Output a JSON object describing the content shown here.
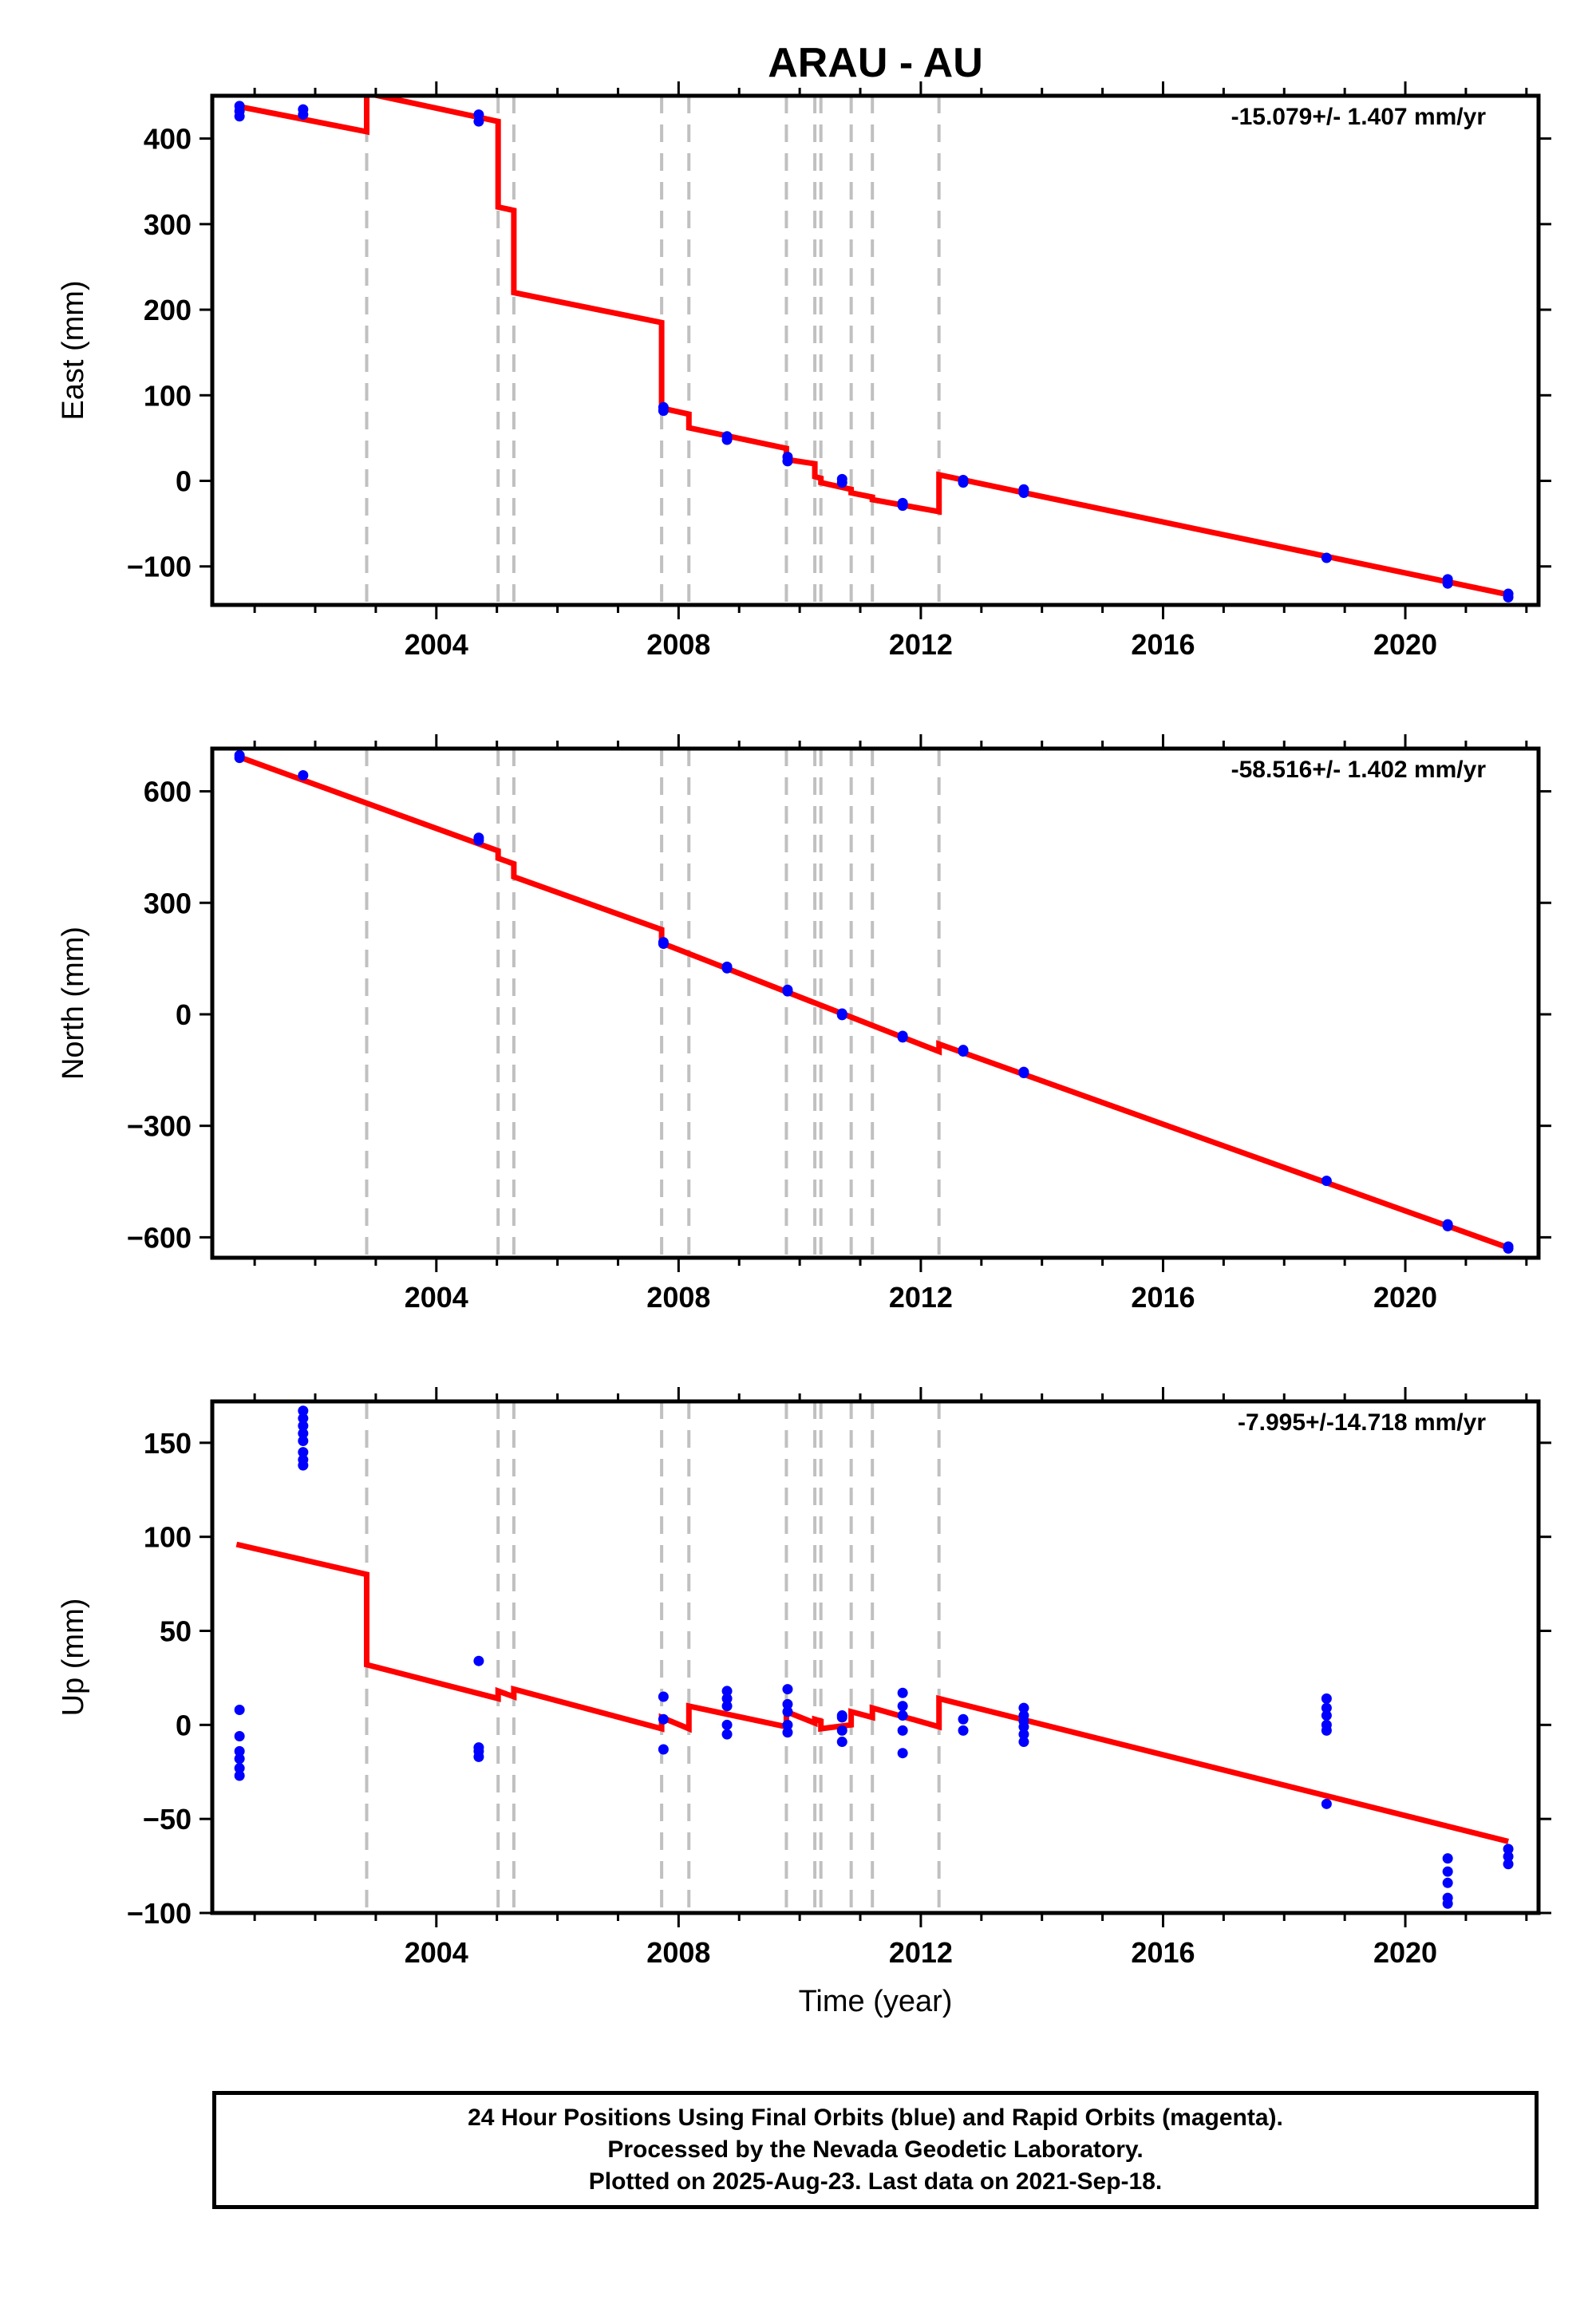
{
  "colors": {
    "model": "#ff0000",
    "final_orbits": "#0000ff",
    "offset_lines": "#c0c0c0",
    "frame": "#000000"
  },
  "footer": {
    "line1": "24 Hour Positions Using Final Orbits (blue) and Rapid Orbits (magenta).",
    "line2": "Processed by the Nevada Geodetic Laboratory.",
    "line3": "Plotted on 2025-Aug-23. Last data on 2021-Sep-18."
  },
  "chart_data": {
    "type": "scatter",
    "title": "ARAU - AU",
    "xlabel": "Time (year)",
    "xlim": [
      2000.3,
      2022.2
    ],
    "x_ticks": [
      2004,
      2008,
      2012,
      2016,
      2020
    ],
    "offset_lines": [
      2002.85,
      2005.02,
      2005.28,
      2007.72,
      2008.17,
      2009.78,
      2010.25,
      2010.35,
      2010.85,
      2011.2,
      2012.3
    ],
    "panels": [
      {
        "ylabel": "East (mm)",
        "rate": "-15.079+/- 1.407 mm/yr",
        "ylim": [
          -145,
          450
        ],
        "y_ticks": [
          -100,
          0,
          100,
          200,
          300,
          400
        ],
        "model": [
          [
            2000.7,
            438
          ],
          [
            2002.85,
            408
          ],
          [
            2002.85,
            453
          ],
          [
            2005.02,
            420
          ],
          [
            2005.02,
            320
          ],
          [
            2005.28,
            316
          ],
          [
            2005.28,
            220
          ],
          [
            2007.72,
            185
          ],
          [
            2007.72,
            85
          ],
          [
            2008.17,
            78
          ],
          [
            2008.17,
            62
          ],
          [
            2009.78,
            38
          ],
          [
            2009.78,
            25
          ],
          [
            2010.25,
            20
          ],
          [
            2010.25,
            5
          ],
          [
            2010.35,
            3
          ],
          [
            2010.35,
            -2
          ],
          [
            2010.85,
            -10
          ],
          [
            2010.85,
            -14
          ],
          [
            2011.2,
            -19
          ],
          [
            2011.2,
            -22
          ],
          [
            2012.3,
            -36
          ],
          [
            2012.3,
            7
          ],
          [
            2021.7,
            -133
          ]
        ],
        "points": [
          [
            2000.75,
            438
          ],
          [
            2000.75,
            432
          ],
          [
            2000.75,
            426
          ],
          [
            2001.8,
            434
          ],
          [
            2001.8,
            428
          ],
          [
            2004.7,
            428
          ],
          [
            2004.7,
            420
          ],
          [
            2007.75,
            86
          ],
          [
            2007.75,
            82
          ],
          [
            2008.8,
            52
          ],
          [
            2008.8,
            48
          ],
          [
            2009.8,
            28
          ],
          [
            2009.8,
            23
          ],
          [
            2010.7,
            2
          ],
          [
            2010.7,
            -2
          ],
          [
            2011.7,
            -26
          ],
          [
            2011.7,
            -29
          ],
          [
            2012.7,
            1
          ],
          [
            2012.7,
            -2
          ],
          [
            2013.7,
            -10
          ],
          [
            2013.7,
            -14
          ],
          [
            2018.7,
            -90
          ],
          [
            2020.7,
            -115
          ],
          [
            2020.7,
            -120
          ],
          [
            2021.7,
            -132
          ],
          [
            2021.7,
            -136
          ]
        ]
      },
      {
        "ylabel": "North (mm)",
        "rate": "-58.516+/- 1.402 mm/yr",
        "ylim": [
          -655,
          715
        ],
        "y_ticks": [
          -600,
          -300,
          0,
          300,
          600
        ],
        "model": [
          [
            2000.7,
            695
          ],
          [
            2005.02,
            440
          ],
          [
            2005.02,
            420
          ],
          [
            2005.28,
            405
          ],
          [
            2005.28,
            370
          ],
          [
            2007.72,
            228
          ],
          [
            2007.72,
            192
          ],
          [
            2012.3,
            -100
          ],
          [
            2012.3,
            -80
          ],
          [
            2021.7,
            -628
          ]
        ],
        "points": [
          [
            2000.75,
            697
          ],
          [
            2000.75,
            690
          ],
          [
            2001.8,
            643
          ],
          [
            2004.7,
            475
          ],
          [
            2004.7,
            468
          ],
          [
            2007.75,
            194
          ],
          [
            2007.75,
            190
          ],
          [
            2008.8,
            128
          ],
          [
            2008.8,
            124
          ],
          [
            2009.8,
            66
          ],
          [
            2009.8,
            62
          ],
          [
            2010.7,
            2
          ],
          [
            2010.7,
            -2
          ],
          [
            2011.7,
            -58
          ],
          [
            2011.7,
            -62
          ],
          [
            2012.7,
            -96
          ],
          [
            2012.7,
            -100
          ],
          [
            2013.7,
            -155
          ],
          [
            2013.7,
            -158
          ],
          [
            2018.7,
            -448
          ],
          [
            2020.7,
            -565
          ],
          [
            2020.7,
            -570
          ],
          [
            2021.7,
            -625
          ],
          [
            2021.7,
            -630
          ]
        ]
      },
      {
        "ylabel": "Up (mm)",
        "rate": "-7.995+/-14.718 mm/yr",
        "ylim": [
          -100,
          172
        ],
        "y_ticks": [
          -100,
          -50,
          0,
          50,
          100,
          150
        ],
        "model": [
          [
            2000.7,
            96
          ],
          [
            2002.85,
            80
          ],
          [
            2002.85,
            32
          ],
          [
            2005.02,
            14
          ],
          [
            2005.02,
            18
          ],
          [
            2005.28,
            15
          ],
          [
            2005.28,
            19
          ],
          [
            2007.72,
            -2
          ],
          [
            2007.72,
            4
          ],
          [
            2008.17,
            -2
          ],
          [
            2008.17,
            10
          ],
          [
            2009.78,
            -1
          ],
          [
            2009.78,
            7
          ],
          [
            2010.25,
            1
          ],
          [
            2010.25,
            3
          ],
          [
            2010.35,
            2
          ],
          [
            2010.35,
            -2
          ],
          [
            2010.85,
            0
          ],
          [
            2010.85,
            7
          ],
          [
            2011.2,
            4
          ],
          [
            2011.2,
            9
          ],
          [
            2012.3,
            -1
          ],
          [
            2012.3,
            14
          ],
          [
            2021.7,
            -62
          ]
        ],
        "points": [
          [
            2000.75,
            8
          ],
          [
            2000.75,
            -6
          ],
          [
            2000.75,
            -14
          ],
          [
            2000.75,
            -18
          ],
          [
            2000.75,
            -23
          ],
          [
            2000.75,
            -27
          ],
          [
            2001.8,
            167
          ],
          [
            2001.8,
            163
          ],
          [
            2001.8,
            159
          ],
          [
            2001.8,
            155
          ],
          [
            2001.8,
            151
          ],
          [
            2001.8,
            145
          ],
          [
            2001.8,
            141
          ],
          [
            2001.8,
            138
          ],
          [
            2004.7,
            34
          ],
          [
            2004.7,
            -12
          ],
          [
            2004.7,
            -14
          ],
          [
            2004.7,
            -17
          ],
          [
            2007.75,
            15
          ],
          [
            2007.75,
            3
          ],
          [
            2007.75,
            -13
          ],
          [
            2008.8,
            18
          ],
          [
            2008.8,
            14
          ],
          [
            2008.8,
            10
          ],
          [
            2008.8,
            0
          ],
          [
            2008.8,
            -5
          ],
          [
            2009.8,
            19
          ],
          [
            2009.8,
            11
          ],
          [
            2009.8,
            7
          ],
          [
            2009.8,
            0
          ],
          [
            2009.8,
            -4
          ],
          [
            2010.7,
            5
          ],
          [
            2010.7,
            4
          ],
          [
            2010.7,
            -3
          ],
          [
            2010.7,
            -9
          ],
          [
            2011.7,
            17
          ],
          [
            2011.7,
            10
          ],
          [
            2011.7,
            5
          ],
          [
            2011.7,
            -3
          ],
          [
            2011.7,
            -15
          ],
          [
            2012.7,
            3
          ],
          [
            2012.7,
            -3
          ],
          [
            2013.7,
            9
          ],
          [
            2013.7,
            5
          ],
          [
            2013.7,
            2
          ],
          [
            2013.7,
            -1
          ],
          [
            2013.7,
            -5
          ],
          [
            2013.7,
            -9
          ],
          [
            2018.7,
            14
          ],
          [
            2018.7,
            9
          ],
          [
            2018.7,
            5
          ],
          [
            2018.7,
            0
          ],
          [
            2018.7,
            -3
          ],
          [
            2018.7,
            -42
          ],
          [
            2020.7,
            -71
          ],
          [
            2020.7,
            -78
          ],
          [
            2020.7,
            -84
          ],
          [
            2020.7,
            -92
          ],
          [
            2020.7,
            -95
          ],
          [
            2021.7,
            -66
          ],
          [
            2021.7,
            -70
          ],
          [
            2021.7,
            -74
          ]
        ]
      }
    ]
  }
}
